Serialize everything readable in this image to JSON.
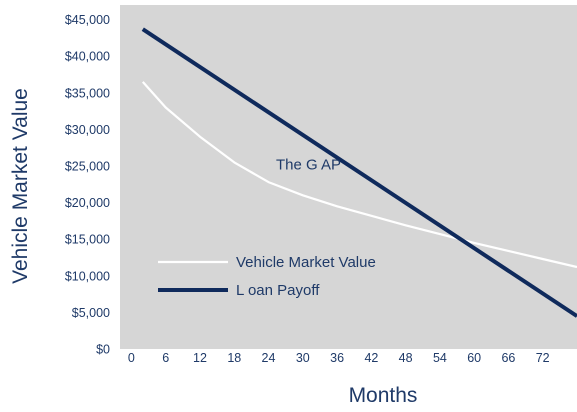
{
  "chart_data": {
    "type": "line",
    "title": "",
    "xlabel": "Months",
    "ylabel": "Vehicle Market Value",
    "xlim": [
      -2,
      78
    ],
    "ylim": [
      0,
      47000
    ],
    "x_ticks": [
      0,
      6,
      12,
      18,
      24,
      30,
      36,
      42,
      48,
      54,
      60,
      66,
      72
    ],
    "x_tick_labels": [
      "0",
      "6",
      "12",
      "18",
      "24",
      "30",
      "36",
      "42",
      "48",
      "54",
      "60",
      "66",
      "72"
    ],
    "y_ticks": [
      0,
      5000,
      10000,
      15000,
      20000,
      25000,
      30000,
      35000,
      40000,
      45000
    ],
    "y_tick_labels": [
      "$0",
      "$5,000",
      "$10,000",
      "$15,000",
      "$20,000",
      "$25,000",
      "$30,000",
      "$35,000",
      "$40,000",
      "$45,000"
    ],
    "grid": false,
    "background_color": "#d6d6d6",
    "text_color": "#1f3a68",
    "legend_position": "lower-left",
    "annotations": [
      {
        "text": "The G AP",
        "x": 31,
        "y": 24500
      }
    ],
    "series": [
      {
        "name": "Vehicle Market Value",
        "color": "#ffffff",
        "x": [
          2,
          6,
          12,
          18,
          24,
          30,
          36,
          42,
          48,
          54,
          60,
          66,
          72,
          78
        ],
        "y": [
          36500,
          33000,
          29000,
          25500,
          22800,
          21000,
          19500,
          18200,
          16900,
          15700,
          14500,
          13400,
          12300,
          11200
        ]
      },
      {
        "name": "L oan Payoff",
        "color": "#0f2a5c",
        "x": [
          2,
          78
        ],
        "y": [
          43700,
          4500
        ]
      }
    ]
  }
}
